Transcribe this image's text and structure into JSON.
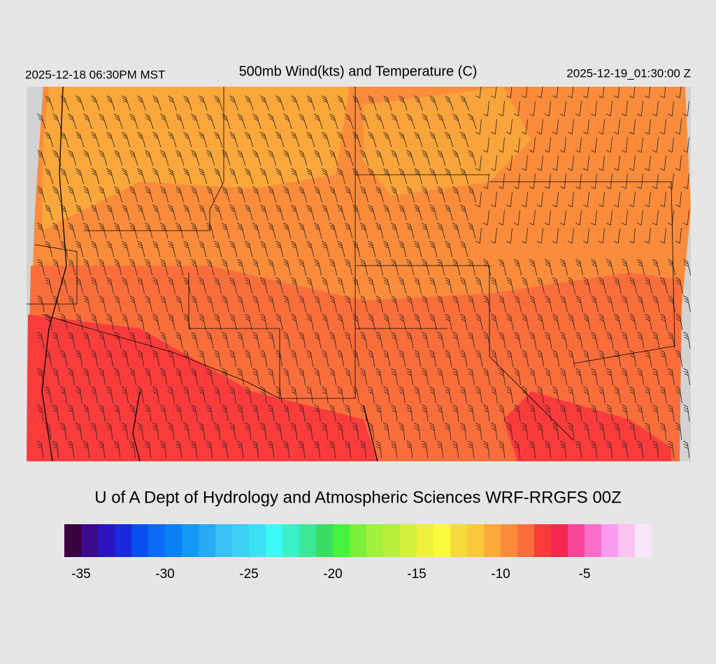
{
  "header": {
    "local_time": "2025-12-18 06:30PM MST",
    "title": "500mb Wind(kts) and Temperature (C)",
    "utc_time": "2025-12-19_01:30:00 Z"
  },
  "credit": "U of A Dept of Hydrology and Atmospheric Sciences WRF-RRGFS 00Z",
  "colorbar": {
    "range": [
      -36,
      -1
    ],
    "ticks": [
      -35,
      -30,
      -25,
      -20,
      -15,
      -10,
      -5
    ],
    "colors": [
      "#3b0040",
      "#3c0a8c",
      "#2a14c0",
      "#1a28e0",
      "#0a50f0",
      "#0a6cf5",
      "#0a80f5",
      "#1498f5",
      "#28a8f5",
      "#3cc0f5",
      "#3cd0f5",
      "#3ce0f5",
      "#3cfaf5",
      "#3cf0c8",
      "#3ce898",
      "#3cdc64",
      "#46f23c",
      "#78f03c",
      "#a0f03c",
      "#b4f03c",
      "#d2f03c",
      "#f0f03c",
      "#fafa3c",
      "#f5dc3c",
      "#fac83c",
      "#faaa3c",
      "#fa8c3c",
      "#fa6e3c",
      "#fa3c3c",
      "#f52850",
      "#fa4696",
      "#fa6ec8",
      "#fa9bf0",
      "#fac3f0",
      "#fae6fa"
    ]
  }
}
